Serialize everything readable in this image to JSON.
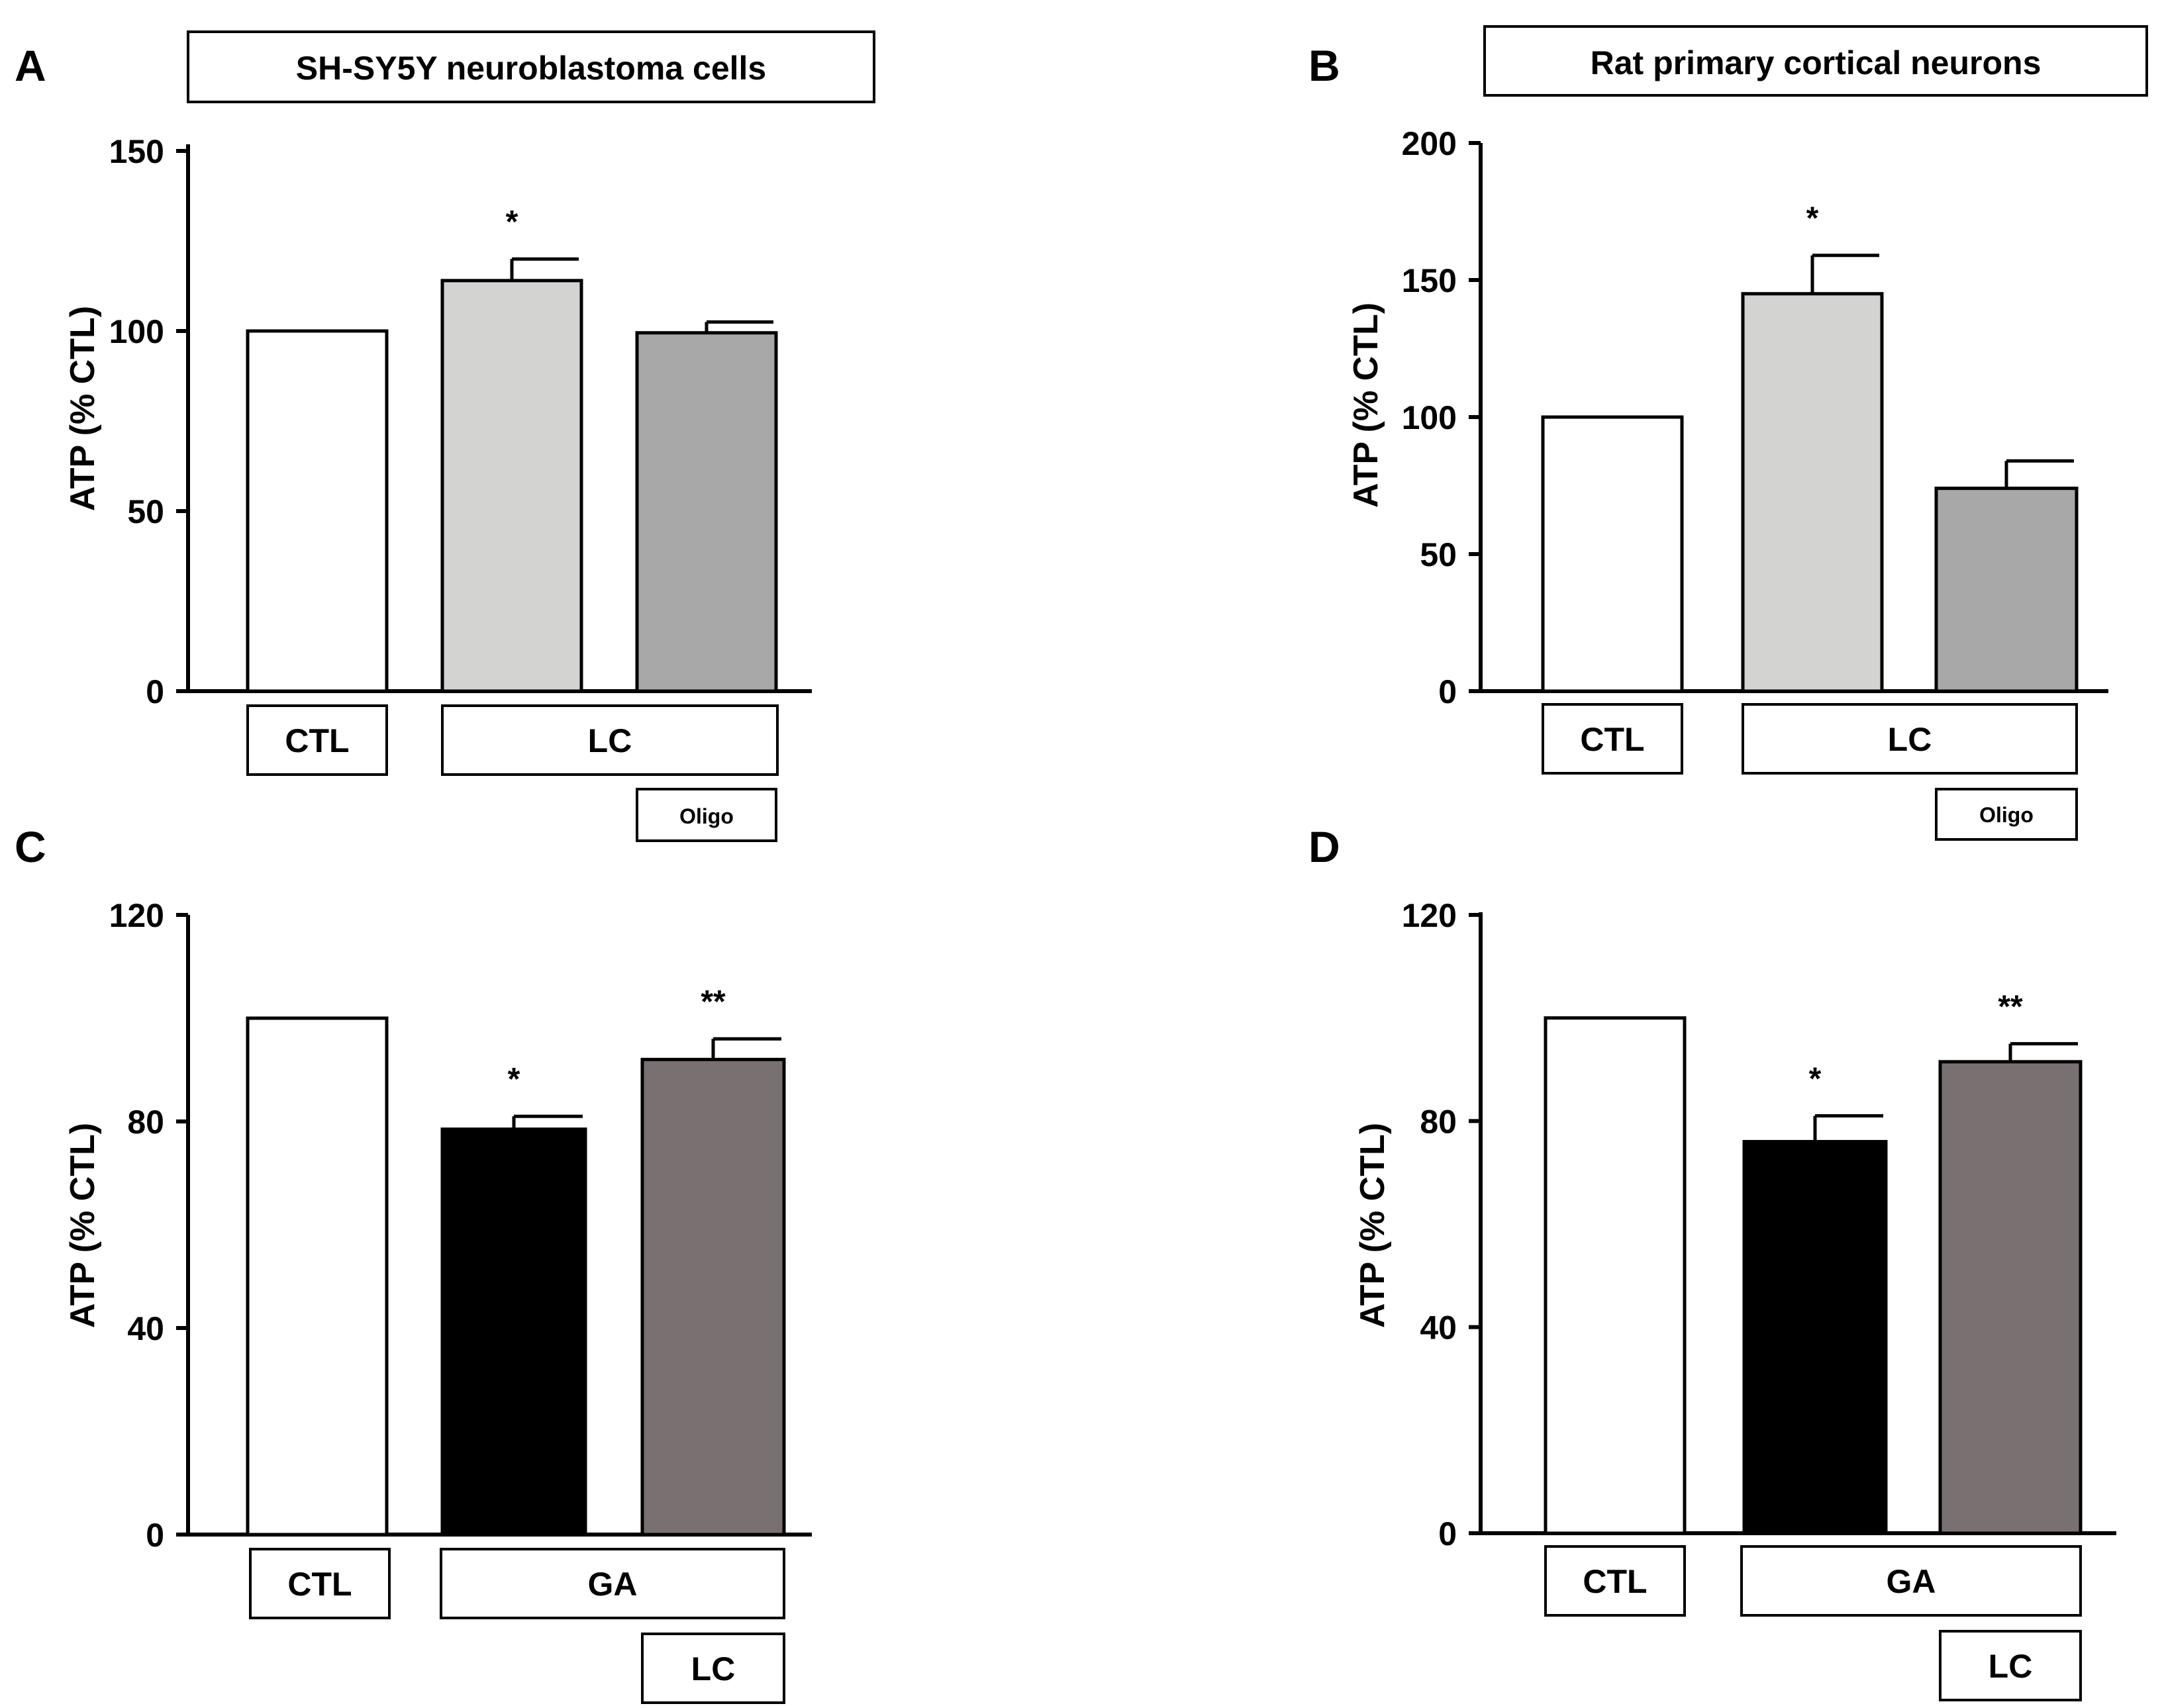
{
  "figure": {
    "panels": [
      {
        "letter": "A",
        "title": "SH-SY5Y neuroblastoma cells",
        "ylabel": "ATP (% CTL)",
        "yticks": [
          "0",
          "50",
          "100",
          "150"
        ],
        "group_labels": {
          "ctl": "CTL",
          "main": "LC",
          "sub": "Oligo"
        }
      },
      {
        "letter": "B",
        "title": "Rat primary cortical neurons",
        "ylabel": "ATP (% CTL)",
        "yticks": [
          "0",
          "50",
          "100",
          "150",
          "200"
        ],
        "group_labels": {
          "ctl": "CTL",
          "main": "LC",
          "sub": "Oligo"
        }
      },
      {
        "letter": "C",
        "title": "",
        "ylabel": "ATP (% CTL)",
        "yticks": [
          "0",
          "40",
          "80",
          "120"
        ],
        "group_labels": {
          "ctl": "CTL",
          "main": "GA",
          "sub": "LC"
        }
      },
      {
        "letter": "D",
        "title": "",
        "ylabel": "ATP (% CTL)",
        "yticks": [
          "0",
          "40",
          "80",
          "120"
        ],
        "group_labels": {
          "ctl": "CTL",
          "main": "GA",
          "sub": "LC"
        }
      }
    ]
  },
  "chart_data": [
    {
      "panel": "A",
      "type": "bar",
      "title": "SH-SY5Y neuroblastoma cells",
      "ylabel": "ATP (% CTL)",
      "ylim": [
        0,
        150
      ],
      "yticks": [
        0,
        50,
        100,
        150
      ],
      "categories": [
        "CTL",
        "LC",
        "LC + Oligo"
      ],
      "values": [
        100,
        114,
        99.5
      ],
      "errors": [
        0,
        6,
        3
      ],
      "significance": [
        "",
        "*",
        ""
      ],
      "colors": [
        "#ffffff",
        "#d3d3d1",
        "#a8a8a8"
      ]
    },
    {
      "panel": "B",
      "type": "bar",
      "title": "Rat primary cortical neurons",
      "ylabel": "ATP (% CTL)",
      "ylim": [
        0,
        200
      ],
      "yticks": [
        0,
        50,
        100,
        150,
        200
      ],
      "categories": [
        "CTL",
        "LC",
        "LC + Oligo"
      ],
      "values": [
        100,
        145,
        74
      ],
      "errors": [
        0,
        14,
        10
      ],
      "significance": [
        "",
        "*",
        ""
      ],
      "colors": [
        "#ffffff",
        "#d3d3d1",
        "#a8a8a8"
      ]
    },
    {
      "panel": "C",
      "type": "bar",
      "title": "",
      "ylabel": "ATP (% CTL)",
      "ylim": [
        0,
        120
      ],
      "yticks": [
        0,
        40,
        80,
        120
      ],
      "categories": [
        "CTL",
        "GA",
        "GA + LC"
      ],
      "values": [
        100,
        78.5,
        92
      ],
      "errors": [
        0,
        2.5,
        4
      ],
      "significance": [
        "",
        "*",
        "**"
      ],
      "colors": [
        "#ffffff",
        "#000000",
        "#797171"
      ]
    },
    {
      "panel": "D",
      "type": "bar",
      "title": "",
      "ylabel": "ATP (% CTL)",
      "ylim": [
        0,
        120
      ],
      "yticks": [
        0,
        40,
        80,
        120
      ],
      "categories": [
        "CTL",
        "GA",
        "GA + LC"
      ],
      "values": [
        100,
        76,
        91.5
      ],
      "errors": [
        0,
        5,
        3.5
      ],
      "significance": [
        "",
        "*",
        "**"
      ],
      "colors": [
        "#ffffff",
        "#000000",
        "#797171"
      ]
    }
  ]
}
